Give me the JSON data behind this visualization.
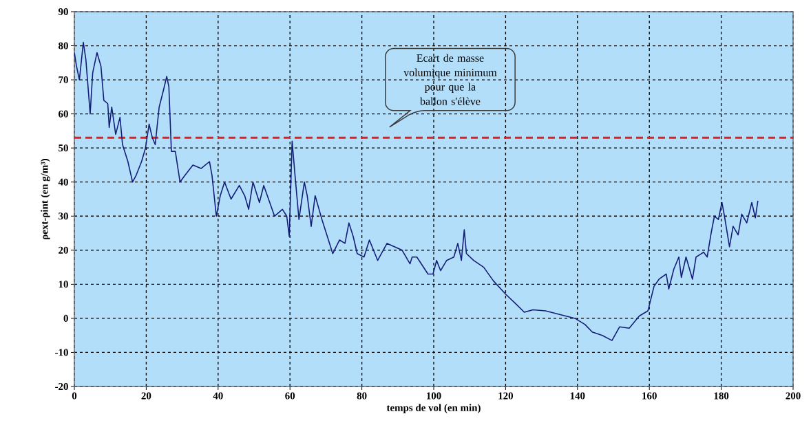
{
  "chart_data": {
    "type": "line",
    "xlabel": "temps de vol (en min)",
    "ylabel": "ρext-ρint (en g/m³)",
    "xlim": [
      0,
      200
    ],
    "ylim": [
      -20,
      90
    ],
    "xticks": [
      0,
      20,
      40,
      60,
      80,
      100,
      120,
      140,
      160,
      180,
      200
    ],
    "yticks": [
      -20,
      -10,
      0,
      10,
      20,
      30,
      40,
      50,
      60,
      70,
      80,
      90
    ],
    "grid": true,
    "line_style": "solid",
    "marker": "none",
    "x": [
      0,
      0.6,
      1.4,
      2.5,
      3.2,
      4.4,
      5.1,
      6.3,
      7.4,
      8.2,
      9.3,
      9.7,
      10.4,
      11.5,
      12.7,
      13.4,
      14.9,
      16.2,
      17.2,
      18.7,
      19.8,
      20.8,
      21.7,
      22.5,
      23.6,
      24.8,
      25.7,
      26.3,
      27,
      28.1,
      29.4,
      30.8,
      33,
      35.3,
      37.6,
      38.3,
      39.5,
      40.6,
      41.8,
      43.6,
      45.9,
      47.4,
      48.5,
      49.7,
      51.5,
      52.7,
      55.7,
      57.9,
      59.1,
      59.8,
      60.6,
      61.4,
      62.5,
      64,
      64.8,
      65.9,
      67,
      68.9,
      71.9,
      73.8,
      75.3,
      76.4,
      77.6,
      78.7,
      80.6,
      82.1,
      84.4,
      87,
      91.2,
      93.4,
      94,
      95.3,
      98.4,
      99.8,
      100.8,
      101.9,
      103.6,
      105.6,
      106.7,
      107.7,
      108.5,
      109.1,
      111.1,
      113.9,
      116.6,
      120.1,
      122.8,
      125.2,
      127.6,
      131.1,
      135.2,
      139.3,
      142.1,
      144.1,
      146.9,
      149.6,
      151.7,
      154.4,
      157.2,
      159.6,
      161.3,
      162.7,
      164.7,
      165.4,
      166.8,
      168.2,
      168.9,
      170.2,
      172,
      173,
      175.1,
      176.1,
      177.1,
      178.1,
      179.2,
      180.2,
      180.9,
      182.3,
      183.3,
      184.7,
      185.7,
      187.1,
      188.5,
      189.5,
      190.2
    ],
    "series": [
      {
        "color": "#141e78",
        "values": [
          78,
          74,
          70,
          81,
          76,
          60,
          72,
          78,
          74,
          64,
          63,
          56,
          62,
          54,
          59,
          51,
          46,
          40,
          42,
          46,
          50,
          57,
          53,
          51,
          62,
          67,
          71,
          68,
          49,
          49,
          40,
          42,
          45,
          44,
          46,
          42,
          30,
          36,
          40,
          35,
          39,
          36,
          32,
          40,
          34,
          39,
          30,
          32,
          30,
          24,
          52,
          42,
          29,
          40,
          36,
          27,
          36,
          29,
          19,
          23,
          22,
          28,
          24,
          19,
          18,
          23,
          17,
          22,
          20,
          16,
          18,
          18,
          13,
          13,
          17,
          14,
          17,
          18,
          22,
          17,
          26,
          19,
          17,
          15,
          11,
          7,
          4.3,
          1.8,
          2.5,
          2.2,
          1.1,
          0,
          -1.8,
          -4,
          -5,
          -6.5,
          -2.5,
          -2.9,
          0.7,
          2.2,
          9.4,
          11.5,
          13,
          8.6,
          14.4,
          18,
          12,
          18,
          11.5,
          18,
          19.4,
          18,
          24.5,
          30,
          29,
          34,
          30,
          21,
          27,
          24.5,
          30.6,
          28,
          34,
          29.5,
          34.5
        ]
      }
    ],
    "ref_lines": [
      {
        "axis": "y",
        "value": 53,
        "color": "#e02020",
        "line_style": "dashed"
      }
    ],
    "annotations": [
      "Ecart de masse volumique minimum pour que la ballon s'élève"
    ]
  }
}
